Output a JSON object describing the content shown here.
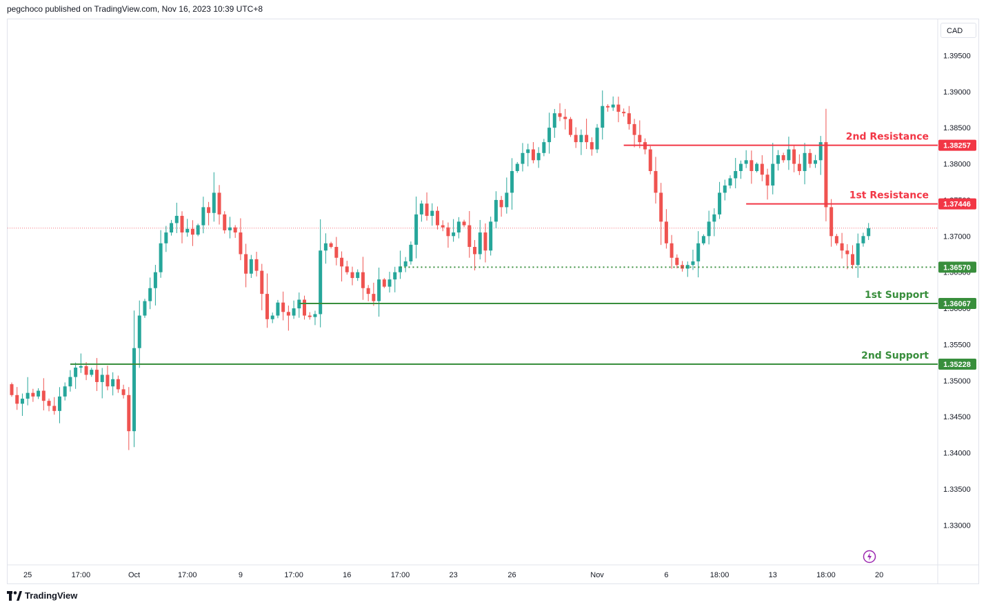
{
  "header": {
    "text": "pegchoco published on TradingView.com, Nov 16, 2023 10:39 UTC+8"
  },
  "footer": {
    "brand": "TradingView"
  },
  "currency_label": "CAD",
  "icons": {
    "logo": "tradingview-logo-icon",
    "replay": "lightning-icon"
  },
  "colors": {
    "up": "#26a69a",
    "down": "#ef5350",
    "resistance": "#f23645",
    "support": "#388e3c",
    "current": "#f23645"
  },
  "chart_data": {
    "type": "candlestick",
    "y_ticks": [
      "1.39500",
      "1.39000",
      "1.38500",
      "1.38000",
      "1.37500",
      "1.37000",
      "1.36500",
      "1.36000",
      "1.35500",
      "1.35000",
      "1.34500",
      "1.34000",
      "1.33500",
      "1.33000"
    ],
    "y_tick_values": [
      1.395,
      1.39,
      1.385,
      1.38,
      1.375,
      1.37,
      1.365,
      1.36,
      1.355,
      1.35,
      1.345,
      1.34,
      1.335,
      1.33
    ],
    "ylim": [
      1.3245,
      1.4
    ],
    "x_ticks": [
      {
        "label": "25",
        "i": 3
      },
      {
        "label": "17:00",
        "i": 13
      },
      {
        "label": "Oct",
        "i": 23
      },
      {
        "label": "17:00",
        "i": 33
      },
      {
        "label": "9",
        "i": 43
      },
      {
        "label": "17:00",
        "i": 53
      },
      {
        "label": "16",
        "i": 63
      },
      {
        "label": "17:00",
        "i": 73
      },
      {
        "label": "23",
        "i": 83
      },
      {
        "label": "26",
        "i": 94
      },
      {
        "label": "Nov",
        "i": 110
      },
      {
        "label": "6",
        "i": 123
      },
      {
        "label": "18:00",
        "i": 133
      },
      {
        "label": "13",
        "i": 143
      },
      {
        "label": "18:00",
        "i": 153
      },
      {
        "label": "20",
        "i": 163
      }
    ],
    "current_price": 1.3711,
    "levels": [
      {
        "name": "2nd Resistance",
        "value": 1.38257,
        "label": "1.38257",
        "kind": "resistance",
        "from_i": 115,
        "style": "solid"
      },
      {
        "name": "1st Resistance",
        "value": 1.37446,
        "label": "1.37446",
        "kind": "resistance",
        "from_i": 138,
        "style": "solid"
      },
      {
        "name": "",
        "value": 1.3657,
        "label": "1.36570",
        "kind": "support",
        "from_i": 73,
        "style": "dotted"
      },
      {
        "name": "1st Support",
        "value": 1.36067,
        "label": "1.36067",
        "kind": "support",
        "from_i": 54,
        "style": "solid"
      },
      {
        "name": "2nd Support",
        "value": 1.35228,
        "label": "1.35228",
        "kind": "support",
        "from_i": 11,
        "style": "solid"
      }
    ],
    "closes": [
      1.348,
      1.3468,
      1.3475,
      1.3483,
      1.3478,
      1.3486,
      1.3472,
      1.3465,
      1.3458,
      1.3478,
      1.3492,
      1.3505,
      1.3518,
      1.352,
      1.3508,
      1.3515,
      1.3498,
      1.3508,
      1.3492,
      1.3502,
      1.3488,
      1.348,
      1.343,
      1.3545,
      1.359,
      1.361,
      1.3628,
      1.365,
      1.369,
      1.3705,
      1.3718,
      1.3728,
      1.3705,
      1.371,
      1.3702,
      1.3715,
      1.374,
      1.3732,
      1.376,
      1.373,
      1.3708,
      1.3712,
      1.3705,
      1.3675,
      1.3648,
      1.3668,
      1.3652,
      1.362,
      1.3585,
      1.359,
      1.3608,
      1.3595,
      1.359,
      1.36,
      1.3612,
      1.359,
      1.3588,
      1.3592,
      1.368,
      1.369,
      1.3685,
      1.367,
      1.3658,
      1.365,
      1.3642,
      1.365,
      1.3628,
      1.362,
      1.361,
      1.364,
      1.363,
      1.364,
      1.365,
      1.3658,
      1.3665,
      1.3688,
      1.373,
      1.3745,
      1.3728,
      1.3735,
      1.3715,
      1.3712,
      1.37,
      1.3705,
      1.372,
      1.3715,
      1.3685,
      1.3675,
      1.3705,
      1.368,
      1.372,
      1.375,
      1.374,
      1.376,
      1.379,
      1.38,
      1.3815,
      1.382,
      1.3805,
      1.3815,
      1.383,
      1.385,
      1.387,
      1.3865,
      1.3862,
      1.384,
      1.383,
      1.384,
      1.383,
      1.382,
      1.385,
      1.388,
      1.3878,
      1.3882,
      1.3872,
      1.387,
      1.3855,
      1.384,
      1.383,
      1.382,
      1.379,
      1.376,
      1.372,
      1.369,
      1.367,
      1.366,
      1.3655,
      1.366,
      1.3665,
      1.369,
      1.37,
      1.372,
      1.373,
      1.376,
      1.377,
      1.378,
      1.379,
      1.38,
      1.3805,
      1.379,
      1.38,
      1.3785,
      1.377,
      1.38,
      1.3812,
      1.3805,
      1.382,
      1.38,
      1.379,
      1.3815,
      1.38,
      1.3805,
      1.383,
      1.374,
      1.37,
      1.369,
      1.368,
      1.3675,
      1.366,
      1.369,
      1.37,
      1.3711
    ],
    "window": {
      "start": 1.3495,
      "n_bars": 167
    }
  }
}
